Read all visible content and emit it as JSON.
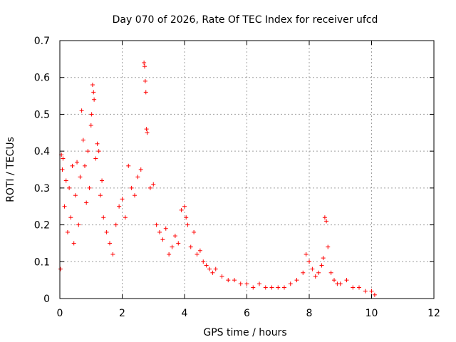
{
  "chart_data": {
    "type": "scatter",
    "title": "Day 070 of 2026, Rate Of TEC Index for receiver ufcd",
    "xlabel": "GPS time / hours",
    "ylabel": "ROTI / TECUs",
    "xlim": [
      0,
      12
    ],
    "ylim": [
      0,
      0.7
    ],
    "xticks": [
      0,
      2,
      4,
      6,
      8,
      10,
      12
    ],
    "xtick_labels": [
      "0",
      "2",
      "4",
      "6",
      "8",
      "10",
      "12"
    ],
    "yticks": [
      0,
      0.1,
      0.2,
      0.3,
      0.4,
      0.5,
      0.6,
      0.7
    ],
    "ytick_labels": [
      "0",
      "0.1",
      "0.2",
      "0.3",
      "0.4",
      "0.5",
      "0.6",
      "0.7"
    ],
    "grid": true,
    "marker": "+",
    "marker_color": "#ff0000",
    "series": [
      {
        "name": "ROTI",
        "x": [
          0.02,
          0.05,
          0.08,
          0.1,
          0.15,
          0.2,
          0.25,
          0.3,
          0.35,
          0.4,
          0.45,
          0.5,
          0.55,
          0.6,
          0.65,
          0.7,
          0.75,
          0.8,
          0.85,
          0.9,
          0.95,
          1.0,
          1.02,
          1.05,
          1.08,
          1.1,
          1.15,
          1.2,
          1.25,
          1.3,
          1.35,
          1.4,
          1.5,
          1.6,
          1.7,
          1.8,
          1.9,
          2.0,
          2.1,
          2.2,
          2.3,
          2.4,
          2.5,
          2.6,
          2.7,
          2.72,
          2.74,
          2.76,
          2.78,
          2.8,
          2.9,
          3.0,
          3.1,
          3.2,
          3.3,
          3.4,
          3.5,
          3.6,
          3.7,
          3.8,
          3.9,
          4.0,
          4.05,
          4.1,
          4.2,
          4.3,
          4.4,
          4.5,
          4.6,
          4.7,
          4.8,
          4.9,
          5.0,
          5.2,
          5.4,
          5.6,
          5.8,
          6.0,
          6.2,
          6.4,
          6.6,
          6.8,
          7.0,
          7.2,
          7.4,
          7.6,
          7.8,
          7.9,
          8.0,
          8.1,
          8.2,
          8.3,
          8.4,
          8.45,
          8.5,
          8.55,
          8.6,
          8.7,
          8.8,
          8.9,
          9.0,
          9.2,
          9.4,
          9.6,
          9.8,
          10.0,
          10.1
        ],
        "y": [
          0.08,
          0.39,
          0.35,
          0.38,
          0.25,
          0.32,
          0.18,
          0.3,
          0.22,
          0.36,
          0.15,
          0.28,
          0.37,
          0.2,
          0.33,
          0.51,
          0.43,
          0.36,
          0.26,
          0.4,
          0.3,
          0.47,
          0.5,
          0.58,
          0.56,
          0.54,
          0.38,
          0.42,
          0.4,
          0.28,
          0.32,
          0.22,
          0.18,
          0.15,
          0.12,
          0.2,
          0.25,
          0.27,
          0.22,
          0.36,
          0.3,
          0.28,
          0.33,
          0.35,
          0.64,
          0.63,
          0.59,
          0.56,
          0.46,
          0.45,
          0.3,
          0.31,
          0.2,
          0.18,
          0.16,
          0.19,
          0.12,
          0.14,
          0.17,
          0.15,
          0.24,
          0.25,
          0.22,
          0.2,
          0.14,
          0.18,
          0.12,
          0.13,
          0.1,
          0.09,
          0.08,
          0.07,
          0.08,
          0.06,
          0.05,
          0.05,
          0.04,
          0.04,
          0.03,
          0.04,
          0.03,
          0.03,
          0.03,
          0.03,
          0.04,
          0.05,
          0.07,
          0.12,
          0.1,
          0.08,
          0.06,
          0.07,
          0.09,
          0.11,
          0.22,
          0.21,
          0.14,
          0.07,
          0.05,
          0.04,
          0.04,
          0.05,
          0.03,
          0.03,
          0.02,
          0.02,
          0.01
        ]
      }
    ]
  }
}
